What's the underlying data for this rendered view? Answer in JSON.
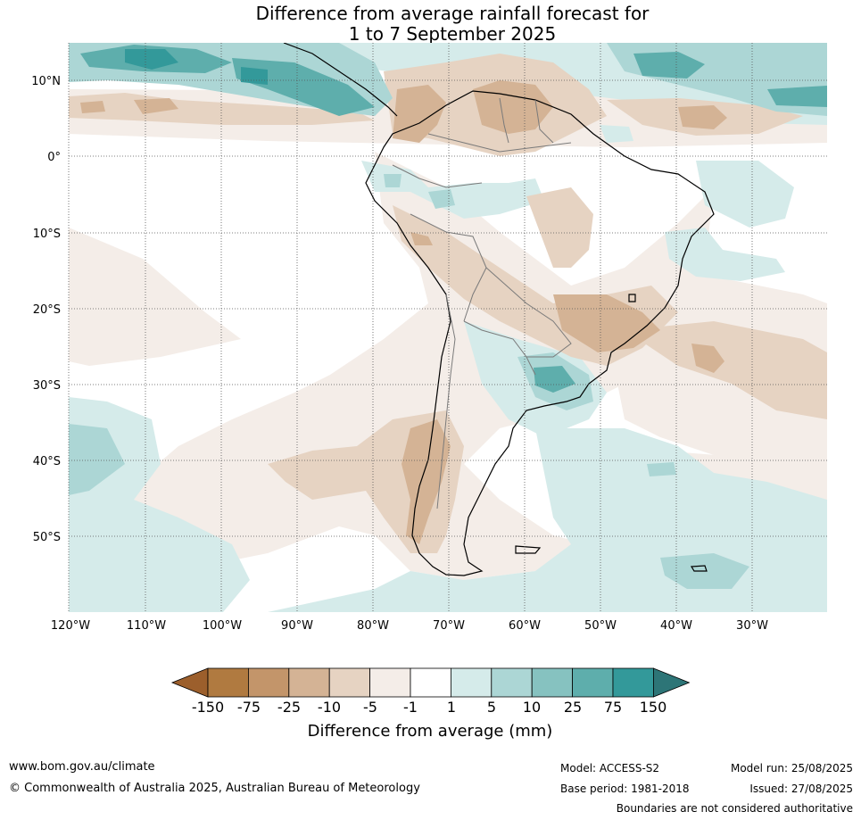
{
  "title": {
    "line1": "Difference from average rainfall forecast for",
    "line2": "1 to 7 September 2025"
  },
  "axes": {
    "lat_labels": [
      "10°N",
      "0°",
      "10°S",
      "20°S",
      "30°S",
      "40°S",
      "50°S"
    ],
    "lon_labels": [
      "120°W",
      "110°W",
      "100°W",
      "90°W",
      "80°W",
      "70°W",
      "60°W",
      "50°W",
      "40°W",
      "30°W"
    ]
  },
  "colorbar": {
    "title": "Difference from average (mm)",
    "tick_labels": [
      "-150",
      "-75",
      "-25",
      "-10",
      "-5",
      "-1",
      "1",
      "5",
      "10",
      "25",
      "75",
      "150"
    ],
    "colors": [
      "#9c5f2c",
      "#b07a40",
      "#c3956a",
      "#d4b395",
      "#e6d3c2",
      "#f4ede8",
      "#ffffff",
      "#d5ebea",
      "#acd6d5",
      "#86c2c0",
      "#5eaeac",
      "#33999a",
      "#2d7577"
    ]
  },
  "colors": {
    "brown_light": "#f4ede8",
    "brown_mid": "#e6d3c2",
    "brown_dark": "#d4b395",
    "teal_light": "#d5ebea",
    "teal_mid": "#acd6d5",
    "teal_dark": "#5eaeac"
  },
  "footer": {
    "url": "www.bom.gov.au/climate",
    "copyright": "© Commonwealth of Australia 2025, Australian Bureau of Meteorology",
    "model": "Model: ACCESS-S2",
    "base_period": "Base period: 1981-2018",
    "model_run": "Model run: 25/08/2025",
    "issued": "Issued: 27/08/2025",
    "disclaimer": "Boundaries are not considered authoritative"
  }
}
